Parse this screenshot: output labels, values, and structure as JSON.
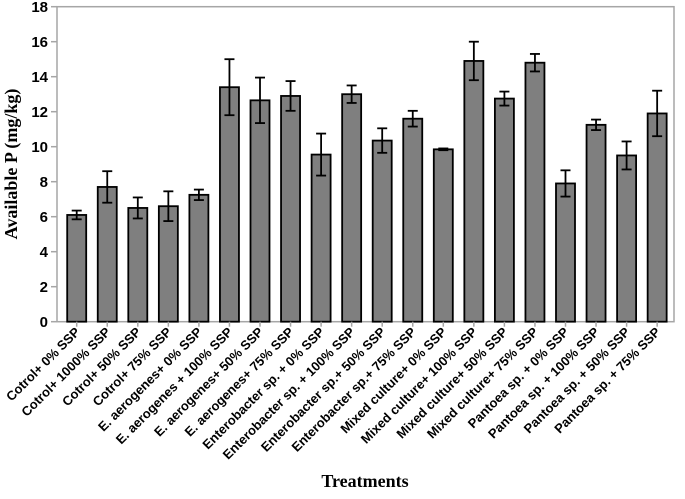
{
  "chart_data": {
    "type": "bar",
    "title": "",
    "xlabel": "Treatments",
    "ylabel": "Available P (mg/kg)",
    "ylim": [
      0,
      18
    ],
    "ytick_step": 2,
    "grid": false,
    "legend": null,
    "bar_color": "#7f7f7f",
    "bar_border_color": "#000000",
    "error_bar_color": "#000000",
    "axis_color": "#a6a6a6",
    "tick_label_color": "#000000",
    "categories": [
      "Cotrol+ 0% SSP",
      "Cotrol+ 1000% SSP",
      "Cotrol+ 50% SSP",
      "Cotrol+ 75% SSP",
      "E. aerogenes+ 0% SSP",
      "E. aerogenes + 100% SSP",
      "E. aerogenes+ 50% SSP",
      "E. aerogenes+ 75% SSP",
      "Enterobacter sp. + 0% SSP",
      "Enterobacter sp. + 100% SSP",
      "Enterobacter sp.+ 50% SSP",
      "Enterobacter sp.+ 75% SSP",
      "Mixed culture+ 0% SSP",
      "Mixed culture+ 100% SSP",
      "Mixed culture+ 50% SSP",
      "Mixed culture+ 75% SSP",
      "Pantoea sp. + 0% SSP",
      "Pantoea sp. + 100% SSP",
      "Pantoea sp. + 50% SSP",
      "Pantoea sp. + 75% SSP"
    ],
    "values": [
      6.1,
      7.7,
      6.5,
      6.6,
      7.25,
      13.4,
      12.65,
      12.9,
      9.55,
      13.0,
      10.35,
      11.6,
      9.85,
      14.9,
      12.75,
      14.8,
      7.9,
      11.25,
      9.5,
      11.9
    ],
    "errors": [
      0.25,
      0.9,
      0.6,
      0.85,
      0.3,
      1.6,
      1.3,
      0.85,
      1.2,
      0.5,
      0.7,
      0.45,
      0.05,
      1.1,
      0.4,
      0.5,
      0.75,
      0.3,
      0.8,
      1.3
    ]
  }
}
